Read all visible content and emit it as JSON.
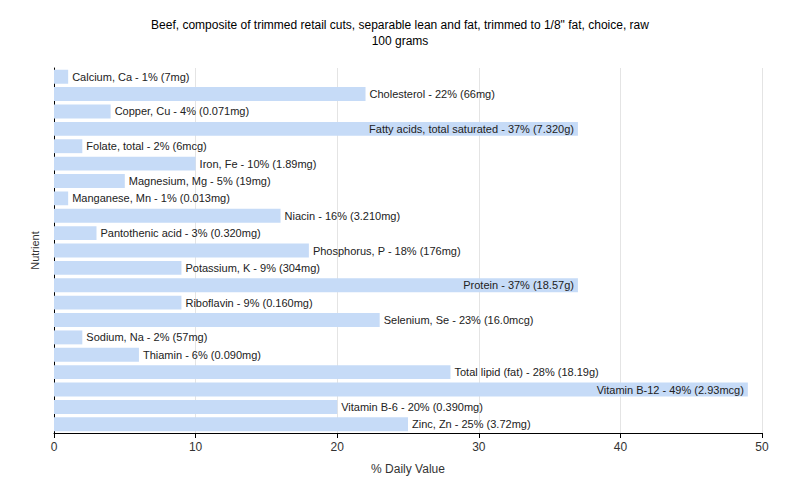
{
  "chart_data": {
    "type": "bar",
    "orientation": "horizontal",
    "title": "Beef, composite of trimmed retail cuts, separable lean and fat, trimmed to 1/8\" fat, choice, raw",
    "subtitle": "100 grams",
    "xlabel": "% Daily Value",
    "ylabel": "Nutrient",
    "categories": [
      "Calcium, Ca - 1% (7mg)",
      "Cholesterol - 22% (66mg)",
      "Copper, Cu - 4% (0.071mg)",
      "Fatty acids, total saturated - 37% (7.320g)",
      "Folate, total - 2% (6mcg)",
      "Iron, Fe - 10% (1.89mg)",
      "Magnesium, Mg - 5% (19mg)",
      "Manganese, Mn - 1% (0.013mg)",
      "Niacin - 16% (3.210mg)",
      "Pantothenic acid - 3% (0.320mg)",
      "Phosphorus, P - 18% (176mg)",
      "Potassium, K - 9% (304mg)",
      "Protein - 37% (18.57g)",
      "Riboflavin - 9% (0.160mg)",
      "Selenium, Se - 23% (16.0mcg)",
      "Sodium, Na - 2% (57mg)",
      "Thiamin - 6% (0.090mg)",
      "Total lipid (fat) - 28% (18.19g)",
      "Vitamin B-12 - 49% (2.93mcg)",
      "Vitamin B-6 - 20% (0.390mg)",
      "Zinc, Zn - 25% (3.72mg)"
    ],
    "values": [
      1,
      22,
      4,
      37,
      2,
      10,
      5,
      1,
      16,
      3,
      18,
      9,
      37,
      9,
      23,
      2,
      6,
      28,
      49,
      20,
      25
    ],
    "color": "#c6dbf7",
    "xlim": [
      0,
      50
    ],
    "xticks": [
      0,
      10,
      20,
      30,
      40,
      50
    ],
    "grid": true,
    "tick_labels": "x"
  }
}
